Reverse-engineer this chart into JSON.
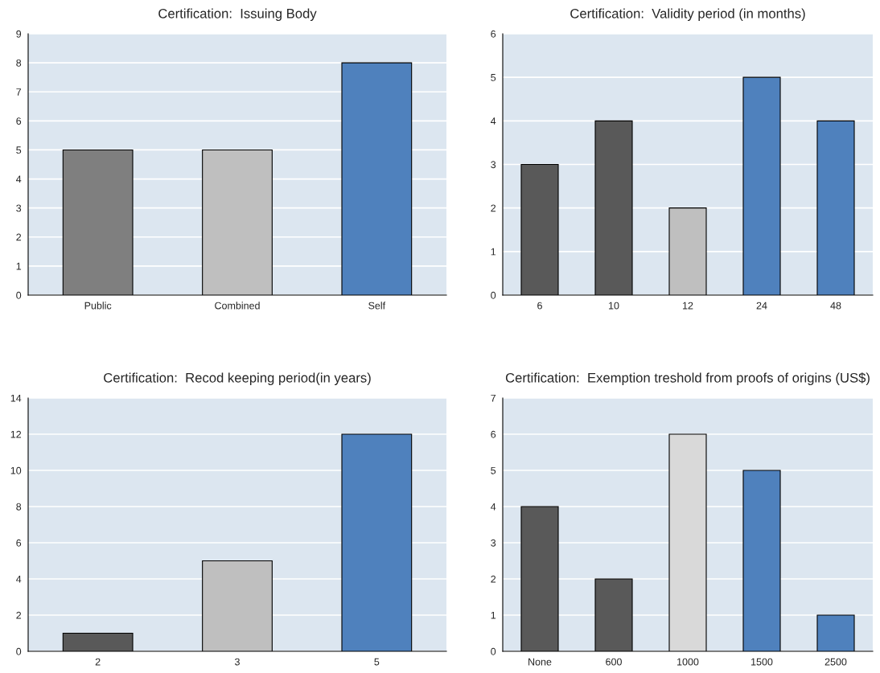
{
  "chart_data": [
    {
      "type": "bar",
      "title": "Certification:  Issuing Body",
      "categories": [
        "Public",
        "Combined",
        "Self"
      ],
      "values": [
        5,
        5,
        8
      ],
      "colors": [
        "#7f7f7f",
        "#bfbfbf",
        "#4f81bd"
      ],
      "ylim": [
        0,
        9
      ],
      "yticks": [
        0,
        1,
        2,
        3,
        4,
        5,
        6,
        7,
        8,
        9
      ],
      "grid": "y"
    },
    {
      "type": "bar",
      "title": "Certification:  Validity period (in months)",
      "categories": [
        "6",
        "10",
        "12",
        "24",
        "48"
      ],
      "values": [
        3,
        4,
        2,
        5,
        4
      ],
      "colors": [
        "#595959",
        "#595959",
        "#bfbfbf",
        "#4f81bd",
        "#4f81bd"
      ],
      "ylim": [
        0,
        6
      ],
      "yticks": [
        0,
        1,
        2,
        3,
        4,
        5,
        6
      ],
      "grid": "y"
    },
    {
      "type": "bar",
      "title": "Certification:  Recod keeping period(in years)",
      "categories": [
        "2",
        "3",
        "5"
      ],
      "values": [
        1,
        5,
        12
      ],
      "colors": [
        "#595959",
        "#bfbfbf",
        "#4f81bd"
      ],
      "ylim": [
        0,
        14
      ],
      "yticks": [
        0,
        2,
        4,
        6,
        8,
        10,
        12,
        14
      ],
      "grid": "y"
    },
    {
      "type": "bar",
      "title": "Certification:  Exemption treshold from proofs of origins (US$)",
      "categories": [
        "None",
        "600",
        "1000",
        "1500",
        "2500"
      ],
      "values": [
        4,
        2,
        6,
        5,
        1
      ],
      "colors": [
        "#595959",
        "#595959",
        "#d9d9d9",
        "#4f81bd",
        "#4f81bd"
      ],
      "ylim": [
        0,
        7
      ],
      "yticks": [
        0,
        1,
        2,
        3,
        4,
        5,
        6,
        7
      ],
      "grid": "y"
    }
  ]
}
